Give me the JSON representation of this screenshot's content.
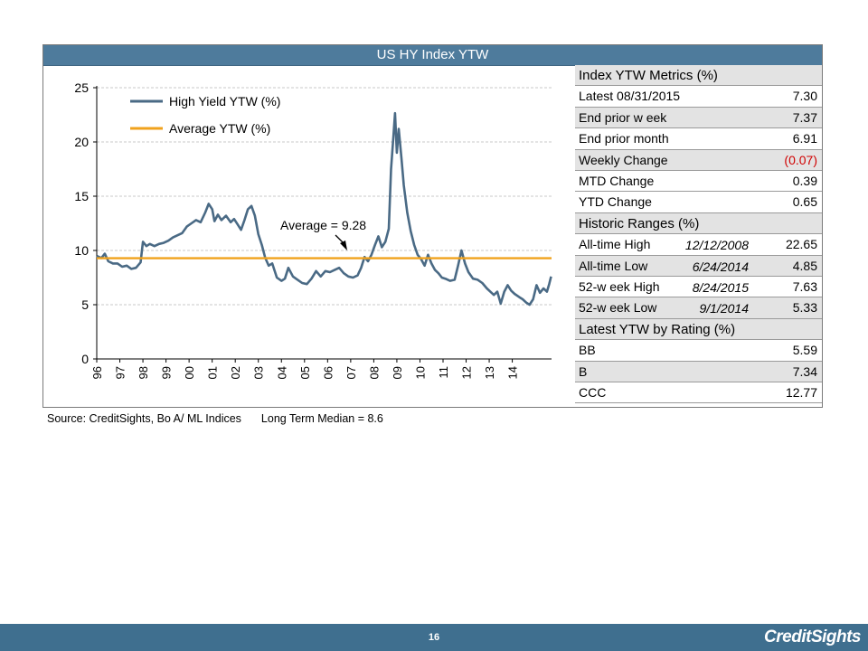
{
  "panel": {
    "title": "US HY Index YTW"
  },
  "chart_data": {
    "type": "line",
    "title": "US HY Index YTW",
    "xlabel": "",
    "ylabel": "",
    "ylim": [
      0,
      25
    ],
    "yticks": [
      0,
      5,
      10,
      15,
      20,
      25
    ],
    "xticks": [
      "96",
      "97",
      "98",
      "99",
      "00",
      "01",
      "02",
      "03",
      "04",
      "05",
      "06",
      "07",
      "08",
      "09",
      "10",
      "11",
      "12",
      "13",
      "14"
    ],
    "xlim": [
      1996.0,
      2015.7
    ],
    "grid": "horizontal",
    "legend_position": "top-left",
    "legend": [
      "High Yield YTW (%)",
      "Average YTW (%)"
    ],
    "annotation": {
      "text": "Average = 9.28",
      "arrow_to": [
        2006.85,
        10.0
      ]
    },
    "series": [
      {
        "name": "High Yield YTW (%)",
        "color": "#4a6a85",
        "points": [
          [
            1996.0,
            9.5
          ],
          [
            1996.2,
            9.3
          ],
          [
            1996.35,
            9.7
          ],
          [
            1996.5,
            9.0
          ],
          [
            1996.7,
            8.8
          ],
          [
            1996.9,
            8.8
          ],
          [
            1997.1,
            8.5
          ],
          [
            1997.3,
            8.6
          ],
          [
            1997.5,
            8.3
          ],
          [
            1997.7,
            8.4
          ],
          [
            1997.9,
            8.9
          ],
          [
            1998.0,
            10.8
          ],
          [
            1998.15,
            10.4
          ],
          [
            1998.3,
            10.6
          ],
          [
            1998.5,
            10.4
          ],
          [
            1998.7,
            10.6
          ],
          [
            1998.9,
            10.7
          ],
          [
            1999.1,
            10.9
          ],
          [
            1999.3,
            11.2
          ],
          [
            1999.5,
            11.4
          ],
          [
            1999.7,
            11.6
          ],
          [
            1999.9,
            12.2
          ],
          [
            2000.1,
            12.5
          ],
          [
            2000.3,
            12.8
          ],
          [
            2000.5,
            12.6
          ],
          [
            2000.7,
            13.5
          ],
          [
            2000.85,
            14.3
          ],
          [
            2001.0,
            13.8
          ],
          [
            2001.1,
            12.7
          ],
          [
            2001.25,
            13.3
          ],
          [
            2001.4,
            12.8
          ],
          [
            2001.6,
            13.2
          ],
          [
            2001.8,
            12.6
          ],
          [
            2001.95,
            12.9
          ],
          [
            2002.1,
            12.4
          ],
          [
            2002.25,
            11.9
          ],
          [
            2002.4,
            12.8
          ],
          [
            2002.55,
            13.8
          ],
          [
            2002.7,
            14.1
          ],
          [
            2002.85,
            13.2
          ],
          [
            2003.0,
            11.5
          ],
          [
            2003.15,
            10.5
          ],
          [
            2003.3,
            9.3
          ],
          [
            2003.45,
            8.6
          ],
          [
            2003.6,
            8.8
          ],
          [
            2003.8,
            7.5
          ],
          [
            2004.0,
            7.2
          ],
          [
            2004.15,
            7.4
          ],
          [
            2004.3,
            8.4
          ],
          [
            2004.5,
            7.6
          ],
          [
            2004.7,
            7.3
          ],
          [
            2004.9,
            7.0
          ],
          [
            2005.1,
            6.9
          ],
          [
            2005.3,
            7.4
          ],
          [
            2005.5,
            8.1
          ],
          [
            2005.7,
            7.6
          ],
          [
            2005.9,
            8.1
          ],
          [
            2006.1,
            8.0
          ],
          [
            2006.3,
            8.2
          ],
          [
            2006.5,
            8.4
          ],
          [
            2006.7,
            7.9
          ],
          [
            2006.9,
            7.6
          ],
          [
            2007.1,
            7.5
          ],
          [
            2007.3,
            7.7
          ],
          [
            2007.45,
            8.4
          ],
          [
            2007.6,
            9.4
          ],
          [
            2007.75,
            9.0
          ],
          [
            2007.9,
            9.6
          ],
          [
            2008.05,
            10.5
          ],
          [
            2008.2,
            11.3
          ],
          [
            2008.35,
            10.3
          ],
          [
            2008.5,
            10.8
          ],
          [
            2008.65,
            12.0
          ],
          [
            2008.75,
            17.5
          ],
          [
            2008.85,
            20.5
          ],
          [
            2008.92,
            22.65
          ],
          [
            2009.0,
            19.0
          ],
          [
            2009.08,
            21.2
          ],
          [
            2009.2,
            18.5
          ],
          [
            2009.3,
            16.0
          ],
          [
            2009.45,
            13.5
          ],
          [
            2009.6,
            11.8
          ],
          [
            2009.75,
            10.5
          ],
          [
            2009.9,
            9.6
          ],
          [
            2010.05,
            9.2
          ],
          [
            2010.2,
            8.6
          ],
          [
            2010.35,
            9.6
          ],
          [
            2010.5,
            8.8
          ],
          [
            2010.65,
            8.2
          ],
          [
            2010.8,
            7.9
          ],
          [
            2010.95,
            7.5
          ],
          [
            2011.1,
            7.4
          ],
          [
            2011.3,
            7.2
          ],
          [
            2011.5,
            7.3
          ],
          [
            2011.65,
            8.6
          ],
          [
            2011.8,
            10.0
          ],
          [
            2011.95,
            8.8
          ],
          [
            2012.1,
            8.0
          ],
          [
            2012.3,
            7.4
          ],
          [
            2012.5,
            7.3
          ],
          [
            2012.7,
            7.0
          ],
          [
            2012.9,
            6.5
          ],
          [
            2013.05,
            6.2
          ],
          [
            2013.2,
            5.9
          ],
          [
            2013.35,
            6.2
          ],
          [
            2013.5,
            5.1
          ],
          [
            2013.65,
            6.2
          ],
          [
            2013.8,
            6.8
          ],
          [
            2013.95,
            6.3
          ],
          [
            2014.1,
            6.0
          ],
          [
            2014.3,
            5.7
          ],
          [
            2014.45,
            5.5
          ],
          [
            2014.6,
            5.2
          ],
          [
            2014.75,
            5.0
          ],
          [
            2014.9,
            5.5
          ],
          [
            2015.05,
            6.8
          ],
          [
            2015.2,
            6.1
          ],
          [
            2015.35,
            6.5
          ],
          [
            2015.5,
            6.2
          ],
          [
            2015.6,
            6.9
          ],
          [
            2015.68,
            7.6
          ]
        ]
      },
      {
        "name": "Average YTW (%)",
        "color": "#f0a21c",
        "points": [
          [
            1996.0,
            9.28
          ],
          [
            2015.7,
            9.28
          ]
        ]
      }
    ]
  },
  "metrics": {
    "rows": [
      {
        "kind": "head",
        "label": "Index YTW Metrics (%)",
        "date": "",
        "value": ""
      },
      {
        "kind": "white",
        "label": "Latest 08/31/2015",
        "date": "",
        "value": "7.30"
      },
      {
        "kind": "shade",
        "label": "End prior w eek",
        "date": "",
        "value": "7.37"
      },
      {
        "kind": "white",
        "label": "End prior month",
        "date": "",
        "value": "6.91"
      },
      {
        "kind": "shade",
        "label": "Weekly Change",
        "date": "",
        "value": "(0.07)",
        "negative": true
      },
      {
        "kind": "white",
        "label": "MTD Change",
        "date": "",
        "value": "0.39"
      },
      {
        "kind": "white",
        "label": "YTD Change",
        "date": "",
        "value": "0.65"
      },
      {
        "kind": "head",
        "label": "Historic Ranges (%)",
        "date": "",
        "value": ""
      },
      {
        "kind": "white",
        "label": "All-time High",
        "date": "12/12/2008",
        "value": "22.65"
      },
      {
        "kind": "shade",
        "label": "All-time Low",
        "date": "6/24/2014",
        "value": "4.85"
      },
      {
        "kind": "white",
        "label": "52-w eek High",
        "date": "8/24/2015",
        "value": "7.63"
      },
      {
        "kind": "shade",
        "label": "52-w eek Low",
        "date": "9/1/2014",
        "value": "5.33"
      },
      {
        "kind": "head",
        "label": "Latest YTW by Rating (%)",
        "date": "",
        "value": ""
      },
      {
        "kind": "white",
        "label": "BB",
        "date": "",
        "value": "5.59"
      },
      {
        "kind": "shade",
        "label": "B",
        "date": "",
        "value": "7.34"
      },
      {
        "kind": "white",
        "label": "CCC",
        "date": "",
        "value": "12.77"
      }
    ]
  },
  "footer_source": {
    "source": "Source: CreditSights, Bo A/ ML Indices",
    "median": "Long Term Median = 8.6"
  },
  "footer": {
    "page_number": "16",
    "brand": "CreditSights"
  },
  "colors": {
    "accent": "#4e7b9c",
    "footer_bar": "#3f6f8f",
    "series_line": "#4a6a85",
    "average_line": "#f0a21c",
    "negative": "#d00000"
  }
}
